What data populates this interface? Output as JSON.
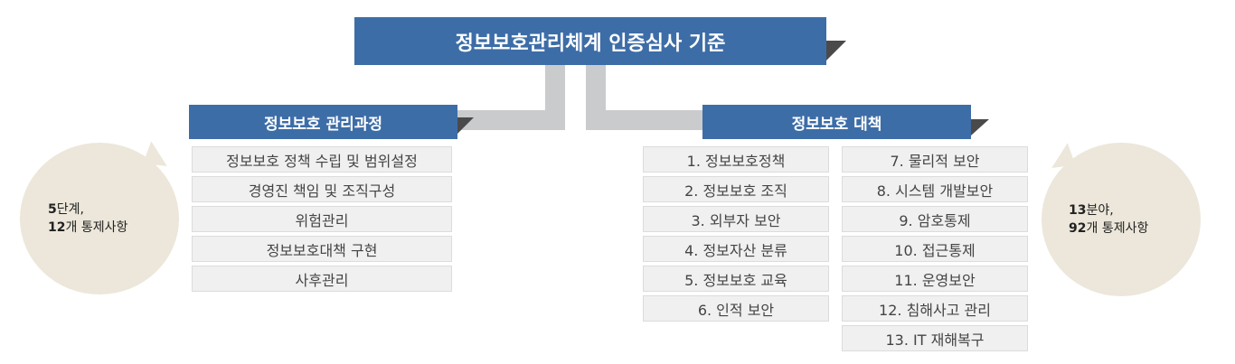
{
  "title": "정보보호관리체계 인증심사 기준",
  "left": {
    "header": "정보보호 관리과정",
    "items": [
      "정보보호 정책 수립 및 범위설정",
      "경영진 책임 및 조직구성",
      "위험관리",
      "정보보호대책 구현",
      "사후관리"
    ],
    "bubble": {
      "line1_num": "5",
      "line1_text": "단계,",
      "line2_num": "12",
      "line2_text": "개 통제사항"
    }
  },
  "right": {
    "header": "정보보호 대책",
    "col1": [
      "1. 정보보호정책",
      "2. 정보보호 조직",
      "3. 외부자 보안",
      "4. 정보자산 분류",
      "5. 정보보호 교육",
      "6. 인적 보안"
    ],
    "col2": [
      "7. 물리적 보안",
      "8. 시스템 개발보안",
      "9. 암호통제",
      "10. 접근통제",
      "11. 운영보안",
      "12. 침해사고 관리",
      "13. IT 재해복구"
    ],
    "bubble": {
      "line1_num": "13",
      "line1_text": "분야,",
      "line2_num": "92",
      "line2_text": "개 통제사항"
    }
  },
  "colors": {
    "header_blue": "#3d6da7",
    "connector_gray": "#c9cbcd",
    "bubble_beige": "#ece7da",
    "item_gray": "#f0f0f0"
  }
}
